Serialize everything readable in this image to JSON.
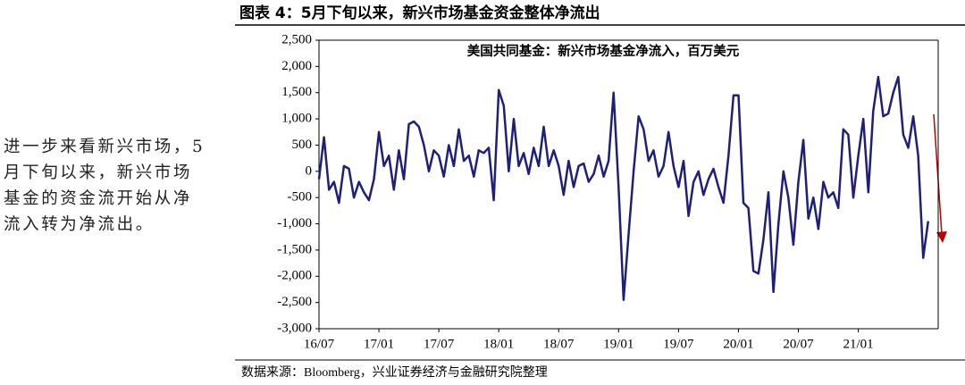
{
  "figure_title": "图表 4：5月下旬以来，新兴市场基金资金整体净流出",
  "side_text": [
    "进一步来看新兴市场，5",
    "月下旬以来，新兴市场",
    "基金的资金流开始从净",
    "流入转为净流出。"
  ],
  "source": "数据来源：Bloomberg，兴业证券经济与金融研究院整理",
  "chart_data": {
    "type": "line",
    "title": "美国共同基金：新兴市场基金净流入，百万美元",
    "color": "#1f1f7a",
    "categories": [
      "16/07",
      null,
      null,
      null,
      null,
      null,
      null,
      null,
      null,
      null,
      null,
      null,
      "17/01",
      null,
      null,
      null,
      null,
      null,
      null,
      null,
      null,
      null,
      null,
      null,
      "17/07",
      null,
      null,
      null,
      null,
      null,
      null,
      null,
      null,
      null,
      null,
      null,
      "18/01",
      null,
      null,
      null,
      null,
      null,
      null,
      null,
      null,
      null,
      null,
      null,
      "18/07",
      null,
      null,
      null,
      null,
      null,
      null,
      null,
      null,
      null,
      null,
      null,
      "19/01",
      null,
      null,
      null,
      null,
      null,
      null,
      null,
      null,
      null,
      null,
      null,
      "19/07",
      null,
      null,
      null,
      null,
      null,
      null,
      null,
      null,
      null,
      null,
      null,
      "20/01",
      null,
      null,
      null,
      null,
      null,
      null,
      null,
      null,
      null,
      null,
      null,
      "20/07",
      null,
      null,
      null,
      null,
      null,
      null,
      null,
      null,
      null,
      null,
      null,
      "21/01",
      null,
      null,
      null,
      null,
      null,
      null,
      null,
      null,
      null,
      null,
      null,
      null,
      null,
      null
    ],
    "values": [
      -150,
      650,
      -350,
      -200,
      -600,
      100,
      50,
      -500,
      -200,
      -400,
      -550,
      -150,
      750,
      100,
      300,
      -350,
      400,
      -150,
      900,
      950,
      850,
      500,
      0,
      400,
      300,
      -100,
      500,
      100,
      800,
      200,
      300,
      -100,
      400,
      350,
      450,
      -550,
      1550,
      1250,
      0,
      1000,
      100,
      350,
      -50,
      450,
      100,
      850,
      100,
      400,
      100,
      -450,
      200,
      -300,
      100,
      150,
      -200,
      -50,
      300,
      -100,
      200,
      1500,
      -300,
      -2450,
      -1200,
      0,
      1050,
      800,
      200,
      400,
      -100,
      100,
      750,
      100,
      -300,
      200,
      -850,
      -200,
      0,
      -450,
      -150,
      50,
      -300,
      -600,
      300,
      1450,
      1450,
      -600,
      -700,
      -1900,
      -1950,
      -1300,
      -400,
      -2300,
      -1000,
      0,
      -500,
      -1400,
      -200,
      600,
      -900,
      -500,
      -1100,
      -200,
      -500,
      -400,
      -700,
      800,
      700,
      -500,
      300,
      1000,
      -400,
      1150,
      1800,
      1050,
      1100,
      1500,
      1800,
      700,
      450,
      1050,
      300,
      -1650,
      -950
    ],
    "ylim": [
      -3000,
      2500
    ],
    "yticks": [
      {
        "value": -3000,
        "label": "-3,000"
      },
      {
        "value": -2500,
        "label": "-2,500"
      },
      {
        "value": -2000,
        "label": "-2,000"
      },
      {
        "value": -1500,
        "label": "-1,500"
      },
      {
        "value": -1000,
        "label": "-1,000"
      },
      -500,
      0,
      500,
      {
        "value": 1000,
        "label": "1,000"
      },
      {
        "value": 1500,
        "label": "1,500"
      },
      {
        "value": 2000,
        "label": "2,000"
      },
      {
        "value": 2500,
        "label": "2,500"
      }
    ]
  }
}
